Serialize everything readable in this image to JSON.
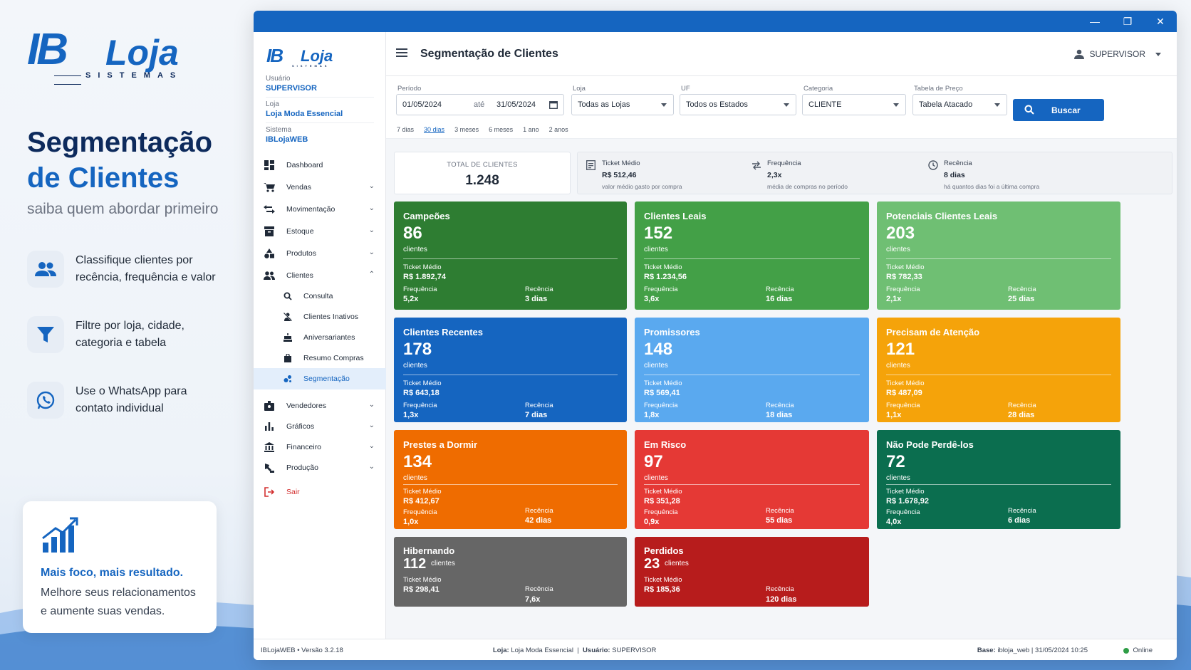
{
  "promo": {
    "logo_ib": "IB",
    "logo_loja": "Loja",
    "logo_sistemas": "SISTEMAS",
    "title_line1": "Segmentação",
    "title_line2": "de Clientes",
    "subtitle": "saiba quem abordar primeiro",
    "features": [
      {
        "icon": "people-icon",
        "line1": "Classifique clientes por",
        "line2": "recência, frequência e valor"
      },
      {
        "icon": "funnel-icon",
        "line1": "Filtre por loja, cidade,",
        "line2": "categoria e tabela"
      },
      {
        "icon": "whatsapp-icon",
        "line1": "Use o WhatsApp para",
        "line2": "contato individual"
      }
    ],
    "card_icon": "bar-chart-growth-icon",
    "card_title": "Mais foco, mais resultado.",
    "card_line1": "Melhore seus relacionamentos",
    "card_line2": "e aumente suas vendas."
  },
  "window": {
    "minimize": "—",
    "maximize": "❐",
    "close": "✕"
  },
  "sidebar": {
    "logo_ib": "IB",
    "logo_loja": "Loja",
    "logo_sistemas": "SISTEMAS",
    "user_label": "Usuário",
    "user_value": "SUPERVISOR",
    "store_label": "Loja",
    "store_value": "Loja Moda Essencial",
    "system_label": "Sistema",
    "system_value": "IBLojaWEB",
    "nav": [
      {
        "label": "Dashboard",
        "icon": "dashboard-icon"
      },
      {
        "label": "Vendas",
        "icon": "cart-icon"
      },
      {
        "label": "Movimentação",
        "icon": "swap-icon"
      },
      {
        "label": "Estoque",
        "icon": "inventory-icon"
      },
      {
        "label": "Produtos",
        "icon": "shapes-icon"
      },
      {
        "label": "Clientes",
        "icon": "people-icon"
      },
      {
        "label": "Consulta",
        "icon": "search-icon"
      },
      {
        "label": "Clientes Inativos",
        "icon": "person-off-icon"
      },
      {
        "label": "Aniversariantes",
        "icon": "cake-icon"
      },
      {
        "label": "Resumo Compras",
        "icon": "shopping-bag-icon"
      },
      {
        "label": "Segmentação",
        "icon": "bubble-chart-icon"
      },
      {
        "label": "Vendedores",
        "icon": "badge-icon"
      },
      {
        "label": "Gráficos",
        "icon": "bar-chart-icon"
      },
      {
        "label": "Financeiro",
        "icon": "bank-icon"
      },
      {
        "label": "Produção",
        "icon": "precision-icon"
      },
      {
        "label": "Sair",
        "icon": "logout-icon"
      }
    ]
  },
  "header": {
    "title": "Segmentação de Clientes",
    "user": "SUPERVISOR"
  },
  "filters": {
    "period_label": "Período",
    "date_from": "01/05/2024",
    "date_sep": "até",
    "date_to": "31/05/2024",
    "store_label": "Loja",
    "store_value": "Todas as Lojas",
    "uf_label": "UF",
    "uf_value": "Todos os Estados",
    "category_label": "Categoria",
    "category_value": "CLIENTE",
    "price_label": "Tabela de Preço",
    "price_value": "Tabela Atacado",
    "search_label": "Buscar",
    "quick": [
      "7 dias",
      "30 dias",
      "3 meses",
      "6 meses",
      "1 ano",
      "2 anos"
    ],
    "quick_selected": "30 dias"
  },
  "summary": {
    "total_label": "TOTAL DE CLIENTES",
    "total_value": "1.248",
    "ticket_label": "Ticket Médio",
    "ticket_value": "R$ 512,46",
    "ticket_desc": "valor médio gasto por compra",
    "freq_label": "Frequência",
    "freq_value": "2,3x",
    "freq_desc": "média de compras no período",
    "rec_label": "Recência",
    "rec_value": "8 dias",
    "rec_desc": "há quantos dias foi a última compra"
  },
  "labels": {
    "clientes": "clientes",
    "ticket": "Ticket Médio",
    "freq": "Frequência",
    "rec": "Recência"
  },
  "segments": [
    {
      "name": "Campeões",
      "count": "86",
      "ticket": "R$ 1.892,74",
      "freq": "5,2x",
      "rec": "3 dias",
      "color": "#2e7d32"
    },
    {
      "name": "Clientes Leais",
      "count": "152",
      "ticket": "R$ 1.234,56",
      "freq": "3,6x",
      "rec": "16 dias",
      "color": "#43a047"
    },
    {
      "name": "Potenciais Clientes Leais",
      "count": "203",
      "ticket": "R$ 782,33",
      "freq": "2,1x",
      "rec": "25 dias",
      "color": "#6fbf73"
    },
    {
      "name": "Clientes Recentes",
      "count": "178",
      "ticket": "R$ 643,18",
      "freq": "1,3x",
      "rec": "7 dias",
      "color": "#1565c0"
    },
    {
      "name": "Promissores",
      "count": "148",
      "ticket": "R$ 569,41",
      "freq": "1,8x",
      "rec": "18 dias",
      "color": "#5aa9ef"
    },
    {
      "name": "Precisam de Atenção",
      "count": "121",
      "ticket": "R$ 487,09",
      "freq": "1,1x",
      "rec": "28 dias",
      "color": "#f5a30a"
    },
    {
      "name": "Prestes a Dormir",
      "count": "134",
      "ticket": "R$ 412,67",
      "freq": "1,0x",
      "rec": "42 dias",
      "color": "#ef6c00"
    },
    {
      "name": "Em Risco",
      "count": "97",
      "ticket": "R$ 351,28",
      "freq": "0,9x",
      "rec": "55 dias",
      "color": "#e53935"
    },
    {
      "name": "Não Pode Perdê-los",
      "count": "72",
      "ticket": "R$ 1.678,92",
      "freq": "4,0x",
      "rec": "6 dias",
      "color": "#0b6e4f"
    },
    {
      "name": "Hibernando",
      "count": "112",
      "ticket": "R$ 298,41",
      "rec": "7,6x",
      "color": "#666666"
    },
    {
      "name": "Perdidos",
      "count": "23",
      "ticket": "R$ 185,36",
      "rec": "120 dias",
      "color": "#b71c1c"
    }
  ],
  "footer": {
    "app": "IBLojaWEB  •  Versão 3.2.18",
    "store_label": "Loja:",
    "store_value": "Loja Moda Essencial",
    "user_label": "Usuário:",
    "user_value": "SUPERVISOR",
    "base_label": "Base:",
    "base_value": "ibloja_web  |  31/05/2024 10:25",
    "status": "Online"
  }
}
